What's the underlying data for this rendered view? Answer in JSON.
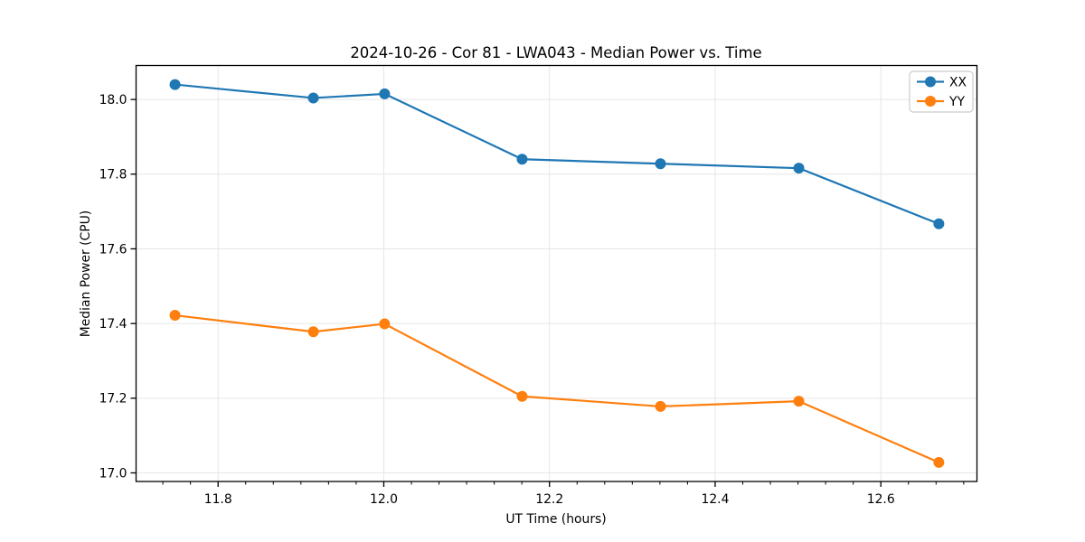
{
  "chart_data": {
    "type": "line",
    "title": "2024-10-26 - Cor 81 - LWA043 - Median Power vs. Time",
    "xlabel": "UT Time (hours)",
    "ylabel": "Median Power (CPU)",
    "x": [
      11.748,
      11.915,
      12.001,
      12.167,
      12.334,
      12.501,
      12.67
    ],
    "series": [
      {
        "name": "XX",
        "color": "#1f77b4",
        "values": [
          18.04,
          18.004,
          18.015,
          17.84,
          17.828,
          17.816,
          17.667
        ]
      },
      {
        "name": "YY",
        "color": "#ff7f0e",
        "values": [
          17.422,
          17.378,
          17.399,
          17.205,
          17.178,
          17.192,
          17.028
        ]
      }
    ],
    "xlim": [
      11.701,
      12.716
    ],
    "ylim": [
      16.977,
      18.091
    ],
    "xticks": [
      11.8,
      12.0,
      12.2,
      12.4,
      12.6
    ],
    "yticks": [
      17.0,
      17.2,
      17.4,
      17.6,
      17.8,
      18.0
    ],
    "x_minor_step": 0.0333333,
    "tick_decimals": 1,
    "grid": true,
    "grid_color": "#e6e6e6",
    "spine_color": "#000000",
    "legend": {
      "location": "upper right",
      "labels": [
        "XX",
        "YY"
      ],
      "border_color": "#cccccc",
      "background": "#ffffff"
    },
    "marker": "circle"
  }
}
